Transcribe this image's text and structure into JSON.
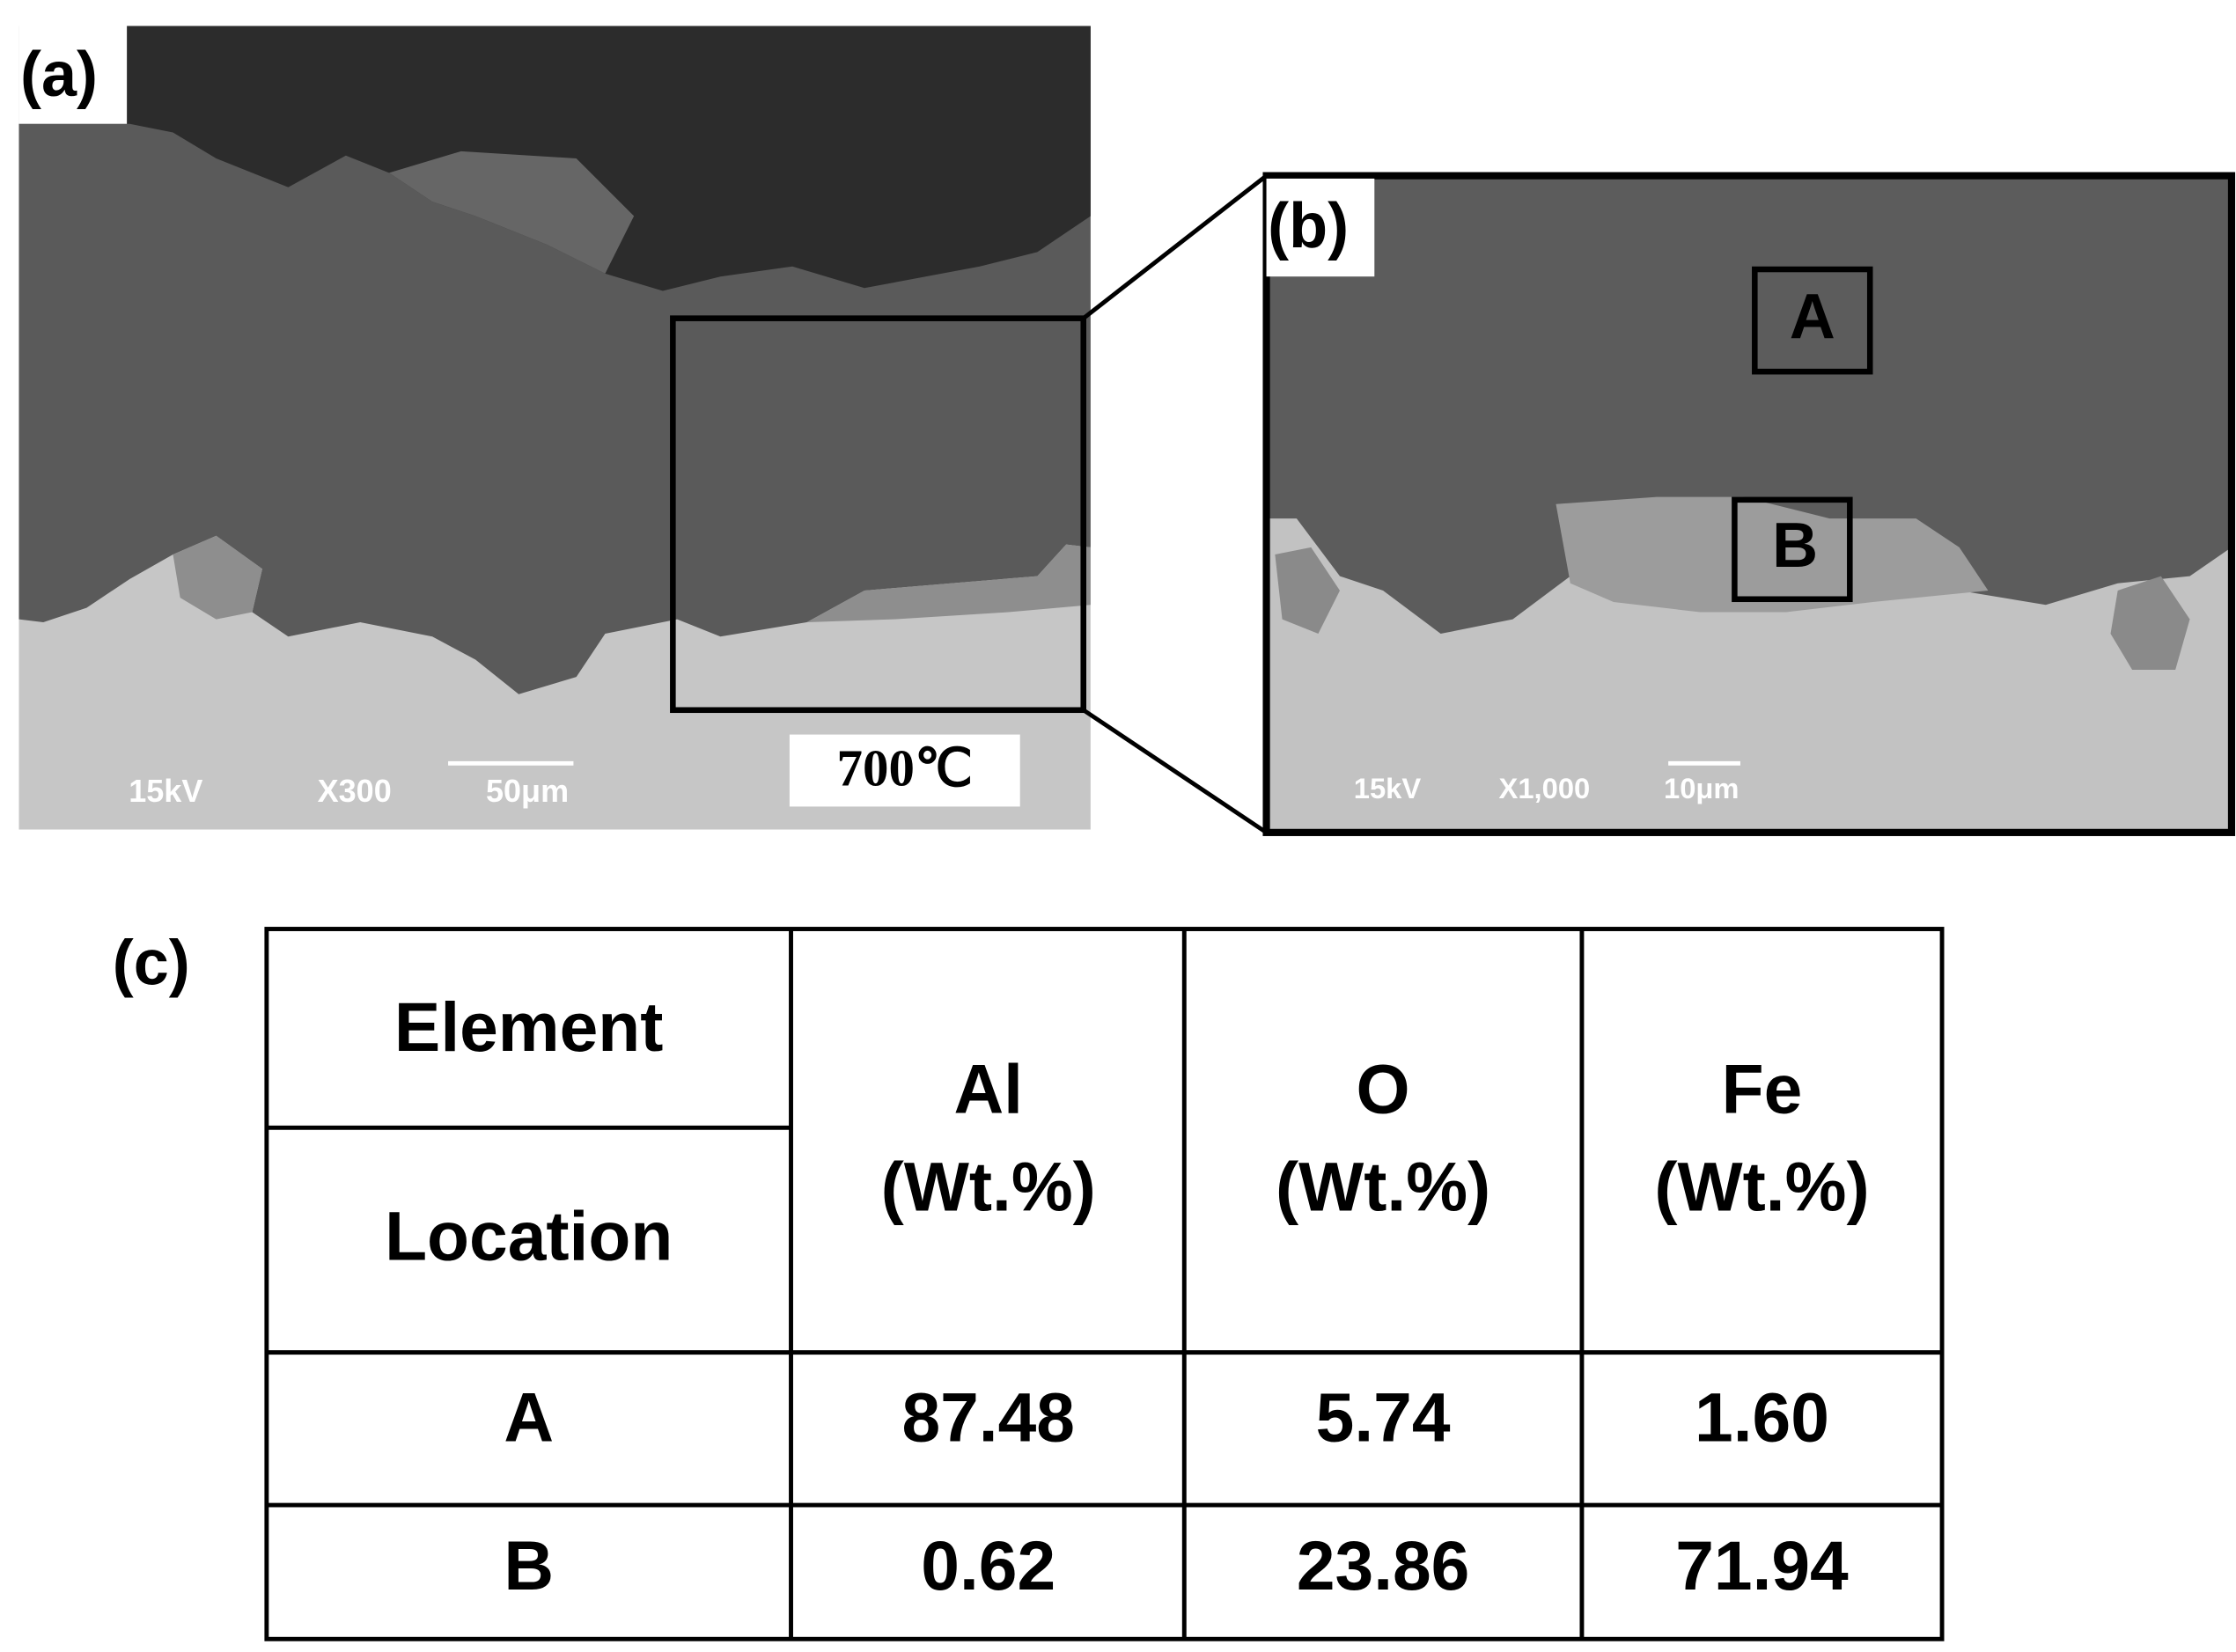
{
  "panels": {
    "a": {
      "label": "(a)",
      "voltage": "15kV",
      "magnification": "X300",
      "scale_bar": "50μm",
      "temperature": "700℃"
    },
    "b": {
      "label": "(b)",
      "voltage": "15kV",
      "magnification": "X1,000",
      "scale_bar": "10μm",
      "regions": [
        "A",
        "B"
      ]
    },
    "c": {
      "label": "(c)"
    }
  },
  "table": {
    "header": {
      "element": "Element",
      "location": "Location",
      "columns": [
        {
          "name": "Al",
          "unit": "(Wt.%)"
        },
        {
          "name": "O",
          "unit": "(Wt.%)"
        },
        {
          "name": "Fe",
          "unit": "(Wt.%)"
        }
      ]
    },
    "rows": [
      [
        "A",
        "87.48",
        "5.74",
        "1.60"
      ],
      [
        "B",
        "0.62",
        "23.86",
        "71.94"
      ]
    ]
  }
}
